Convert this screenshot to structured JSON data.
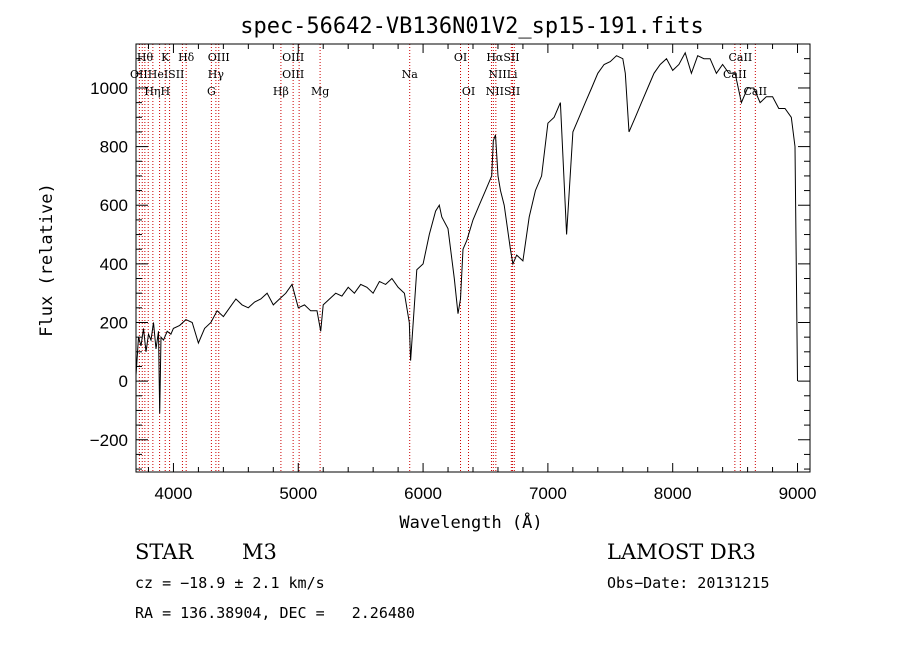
{
  "chart_data": {
    "type": "line",
    "title": "spec-56642-VB136N01V2_sp15-191.fits",
    "xlabel": "Wavelength (Å)",
    "ylabel": "Flux (relative)",
    "xlim": [
      3700,
      9100
    ],
    "ylim": [
      -310,
      1150
    ],
    "xticks": [
      4000,
      5000,
      6000,
      7000,
      8000,
      9000
    ],
    "yticks": [
      -200,
      0,
      200,
      400,
      600,
      800,
      1000
    ],
    "x_minor_step": 200,
    "y_minor_step": 50,
    "grid": false,
    "line_color": "#000000",
    "marker_color": "#cc0000",
    "series": [
      {
        "x": [
          3700,
          3720,
          3740,
          3760,
          3780,
          3800,
          3820,
          3840,
          3860,
          3880,
          3890,
          3900,
          3920,
          3950,
          3980,
          4000,
          4050,
          4100,
          4150,
          4200,
          4250,
          4300,
          4350,
          4400,
          4450,
          4500,
          4550,
          4600,
          4650,
          4700,
          4750,
          4800,
          4850,
          4900,
          4950,
          5000,
          5050,
          5100,
          5150,
          5180,
          5200,
          5250,
          5300,
          5350,
          5400,
          5450,
          5500,
          5550,
          5600,
          5650,
          5700,
          5750,
          5800,
          5850,
          5890,
          5900,
          5950,
          6000,
          6050,
          6100,
          6130,
          6150,
          6200,
          6250,
          6280,
          6300,
          6320,
          6350,
          6400,
          6450,
          6500,
          6550,
          6563,
          6580,
          6600,
          6620,
          6650,
          6700,
          6720,
          6750,
          6800,
          6850,
          6900,
          6950,
          7000,
          7050,
          7100,
          7150,
          7200,
          7250,
          7300,
          7350,
          7400,
          7450,
          7500,
          7550,
          7600,
          7620,
          7650,
          7700,
          7750,
          7800,
          7850,
          7900,
          7950,
          8000,
          8050,
          8100,
          8150,
          8200,
          8250,
          8300,
          8350,
          8400,
          8450,
          8500,
          8550,
          8600,
          8650,
          8700,
          8750,
          8800,
          8850,
          8900,
          8950,
          8980,
          9000
        ],
        "y": [
          20,
          150,
          120,
          180,
          100,
          160,
          140,
          200,
          110,
          170,
          -110,
          150,
          140,
          170,
          160,
          180,
          190,
          210,
          200,
          130,
          180,
          200,
          240,
          220,
          250,
          280,
          260,
          250,
          270,
          280,
          300,
          260,
          280,
          300,
          330,
          250,
          260,
          240,
          240,
          170,
          260,
          280,
          300,
          290,
          320,
          300,
          330,
          320,
          300,
          340,
          330,
          350,
          320,
          300,
          200,
          70,
          380,
          400,
          500,
          580,
          600,
          560,
          520,
          350,
          230,
          280,
          450,
          480,
          550,
          600,
          650,
          700,
          820,
          840,
          700,
          650,
          600,
          450,
          400,
          430,
          410,
          560,
          650,
          700,
          880,
          900,
          950,
          500,
          850,
          900,
          950,
          1000,
          1050,
          1080,
          1090,
          1110,
          1100,
          1050,
          850,
          900,
          950,
          1000,
          1050,
          1080,
          1100,
          1060,
          1080,
          1120,
          1050,
          1110,
          1100,
          1100,
          1050,
          1080,
          1050,
          1050,
          950,
          1000,
          1000,
          950,
          970,
          970,
          930,
          930,
          900,
          800,
          0
        ],
        "color": "#000000"
      }
    ],
    "line_markers": [
      {
        "x": 3727,
        "label": "OII"
      },
      {
        "x": 3750,
        "label": "HI"
      },
      {
        "x": 3771,
        "label": "Hθ"
      },
      {
        "x": 3798,
        "label": "Hθ"
      },
      {
        "x": 3835,
        "label": "Hη"
      },
      {
        "x": 3889,
        "label": "HeI"
      },
      {
        "x": 3934,
        "label": "K"
      },
      {
        "x": 3969,
        "label": "H"
      },
      {
        "x": 4072,
        "label": "SII"
      },
      {
        "x": 4102,
        "label": "Hδ"
      },
      {
        "x": 4304,
        "label": "G"
      },
      {
        "x": 4340,
        "label": "Hγ"
      },
      {
        "x": 4363,
        "label": "OIII"
      },
      {
        "x": 4861,
        "label": "Hβ"
      },
      {
        "x": 4959,
        "label": "OIII"
      },
      {
        "x": 5007,
        "label": "OIII"
      },
      {
        "x": 5175,
        "label": "Mg"
      },
      {
        "x": 5893,
        "label": "Na"
      },
      {
        "x": 6300,
        "label": "OI"
      },
      {
        "x": 6364,
        "label": "OI"
      },
      {
        "x": 6548,
        "label": "NII"
      },
      {
        "x": 6563,
        "label": "Hα"
      },
      {
        "x": 6583,
        "label": "NII"
      },
      {
        "x": 6707,
        "label": "Li"
      },
      {
        "x": 6716,
        "label": "SII"
      },
      {
        "x": 6731,
        "label": "SII"
      },
      {
        "x": 8498,
        "label": "CaII"
      },
      {
        "x": 8542,
        "label": "CaII"
      },
      {
        "x": 8662,
        "label": "CaII"
      }
    ],
    "marker_labels": [
      {
        "text": "Hθ",
        "x": 3772,
        "row": 1
      },
      {
        "text": "K",
        "x": 3934,
        "row": 1
      },
      {
        "text": "Hδ",
        "x": 4102,
        "row": 1
      },
      {
        "text": "OIII",
        "x": 4363,
        "row": 1
      },
      {
        "text": "OIII",
        "x": 4959,
        "row": 1
      },
      {
        "text": "OI",
        "x": 6300,
        "row": 1
      },
      {
        "text": "HαSII",
        "x": 6640,
        "row": 1
      },
      {
        "text": "CaII",
        "x": 8542,
        "row": 1
      },
      {
        "text": "OIIHeISII",
        "x": 3870,
        "row": 2
      },
      {
        "text": "Hγ",
        "x": 4340,
        "row": 2
      },
      {
        "text": "OIII",
        "x": 4959,
        "row": 2
      },
      {
        "text": "Na",
        "x": 5893,
        "row": 2
      },
      {
        "text": "NIILi",
        "x": 6640,
        "row": 2
      },
      {
        "text": "CaII",
        "x": 8498,
        "row": 2
      },
      {
        "text": "HηH",
        "x": 3870,
        "row": 3
      },
      {
        "text": "G",
        "x": 4304,
        "row": 3
      },
      {
        "text": "Hβ",
        "x": 4861,
        "row": 3
      },
      {
        "text": "Mg",
        "x": 5175,
        "row": 3
      },
      {
        "text": "OI",
        "x": 6364,
        "row": 3
      },
      {
        "text": "NIISII",
        "x": 6640,
        "row": 3
      },
      {
        "text": "CaII",
        "x": 8662,
        "row": 3
      }
    ]
  },
  "info": {
    "object_class": "STAR",
    "subclass": "M3",
    "survey": "LAMOST DR3",
    "cz": "cz = −18.9 ± 2.1 km/s",
    "obs_date": "Obs−Date: 20131215",
    "coords": "RA = 136.38904, DEC =   2.26480"
  }
}
